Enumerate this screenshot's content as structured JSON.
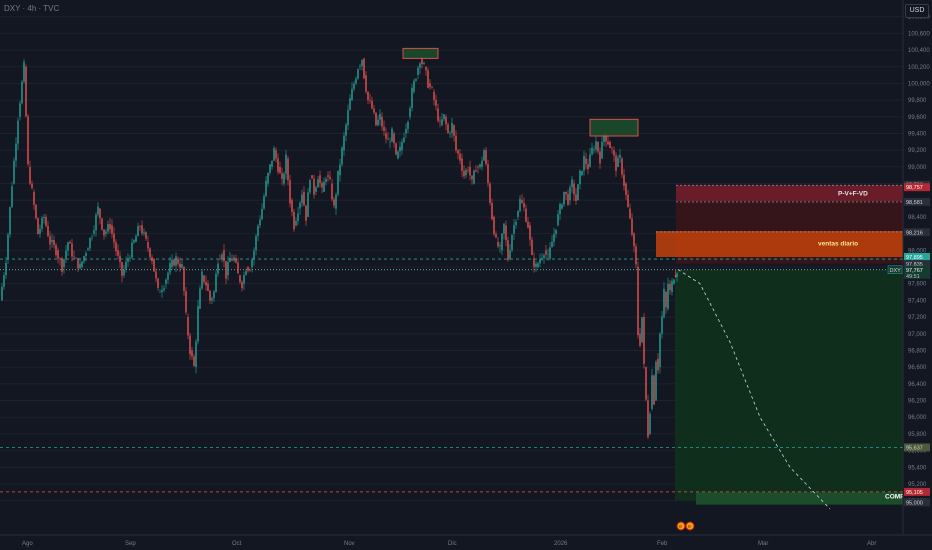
{
  "header": {
    "title": "DXY · 4h · TVC",
    "currency_button": "USD"
  },
  "colors": {
    "background": "#131722",
    "up": "#26a69a",
    "down": "#ef5350",
    "grid": "#1e222d",
    "buy_zone": "#1b4d2a",
    "sell_zone": "#8a1f1f",
    "daily_zone": "#c2410c",
    "pvfvd_zone": "#7a1d2a"
  },
  "zones": {
    "ventas_diario": "ventas diario",
    "pvfvd": "P-V+F-VD",
    "compra": "COMP"
  },
  "badges": {
    "left": "e",
    "right": "e"
  },
  "chart_data": {
    "type": "candlestick",
    "symbol": "DXY",
    "timeframe": "4h",
    "source": "TVC",
    "ylim": [
      94.6,
      101.0
    ],
    "x_labels": [
      "Ago",
      "Sep",
      "Oct",
      "Nov",
      "Dic",
      "2026",
      "Feb",
      "Mar",
      "Abr"
    ],
    "y_ticks": [
      95.0,
      95.2,
      95.4,
      95.6,
      95.8,
      96.0,
      96.2,
      96.4,
      96.6,
      96.8,
      97.0,
      97.2,
      97.4,
      97.6,
      97.8,
      98.0,
      98.2,
      98.4,
      98.6,
      98.8,
      99.0,
      99.2,
      99.4,
      99.6,
      99.8,
      100.0,
      100.2,
      100.4,
      100.6,
      100.8
    ],
    "y_tick_labels": [
      "95,000",
      "95,200",
      "95,400",
      "95,600",
      "95,800",
      "96,000",
      "96,200",
      "96,400",
      "96,600",
      "96,800",
      "97,000",
      "97,200",
      "97,400",
      "97,600",
      "97,800",
      "98,000",
      "98,200",
      "98,400",
      "98,600",
      "98,800",
      "99,000",
      "99,200",
      "99,400",
      "99,600",
      "99,800",
      "100,000",
      "100,200",
      "100,400",
      "100,600",
      "100,800"
    ],
    "price_path": [
      [
        0,
        97.4
      ],
      [
        6,
        97.9
      ],
      [
        12,
        98.8
      ],
      [
        18,
        99.6
      ],
      [
        24,
        100.2
      ],
      [
        28,
        99.0
      ],
      [
        32,
        98.7
      ],
      [
        38,
        98.2
      ],
      [
        44,
        98.4
      ],
      [
        50,
        98.1
      ],
      [
        56,
        98.0
      ],
      [
        62,
        97.8
      ],
      [
        68,
        98.1
      ],
      [
        74,
        97.9
      ],
      [
        80,
        97.8
      ],
      [
        86,
        98.0
      ],
      [
        92,
        98.2
      ],
      [
        98,
        98.5
      ],
      [
        104,
        98.2
      ],
      [
        110,
        98.3
      ],
      [
        116,
        98.0
      ],
      [
        122,
        97.7
      ],
      [
        128,
        97.9
      ],
      [
        134,
        98.1
      ],
      [
        140,
        98.3
      ],
      [
        146,
        98.1
      ],
      [
        152,
        97.9
      ],
      [
        158,
        97.5
      ],
      [
        164,
        97.6
      ],
      [
        170,
        97.8
      ],
      [
        176,
        97.9
      ],
      [
        182,
        97.8
      ],
      [
        186,
        97.2
      ],
      [
        190,
        96.8
      ],
      [
        194,
        96.6
      ],
      [
        198,
        97.3
      ],
      [
        202,
        97.7
      ],
      [
        206,
        97.6
      ],
      [
        210,
        97.4
      ],
      [
        214,
        97.5
      ],
      [
        218,
        97.9
      ],
      [
        222,
        98.0
      ],
      [
        226,
        97.7
      ],
      [
        230,
        97.9
      ],
      [
        234,
        97.9
      ],
      [
        238,
        97.7
      ],
      [
        242,
        97.6
      ],
      [
        246,
        97.8
      ],
      [
        250,
        97.8
      ],
      [
        254,
        98.0
      ],
      [
        258,
        98.3
      ],
      [
        262,
        98.5
      ],
      [
        266,
        98.8
      ],
      [
        270,
        99.0
      ],
      [
        274,
        99.2
      ],
      [
        278,
        99.0
      ],
      [
        282,
        98.8
      ],
      [
        286,
        99.1
      ],
      [
        290,
        98.6
      ],
      [
        294,
        98.3
      ],
      [
        298,
        98.5
      ],
      [
        302,
        98.7
      ],
      [
        306,
        98.4
      ],
      [
        310,
        98.9
      ],
      [
        314,
        98.7
      ],
      [
        318,
        98.9
      ],
      [
        322,
        98.7
      ],
      [
        326,
        98.9
      ],
      [
        330,
        98.8
      ],
      [
        334,
        98.5
      ],
      [
        338,
        98.9
      ],
      [
        342,
        99.2
      ],
      [
        346,
        99.5
      ],
      [
        350,
        99.8
      ],
      [
        354,
        100.0
      ],
      [
        358,
        100.2
      ],
      [
        362,
        100.3
      ],
      [
        364,
        100.1
      ],
      [
        368,
        99.8
      ],
      [
        372,
        99.7
      ],
      [
        376,
        99.5
      ],
      [
        380,
        99.6
      ],
      [
        384,
        99.4
      ],
      [
        388,
        99.3
      ],
      [
        392,
        99.4
      ],
      [
        396,
        99.1
      ],
      [
        400,
        99.2
      ],
      [
        404,
        99.4
      ],
      [
        408,
        99.6
      ],
      [
        412,
        99.9
      ],
      [
        416,
        100.1
      ],
      [
        420,
        100.3
      ],
      [
        424,
        100.2
      ],
      [
        428,
        100.0
      ],
      [
        432,
        99.9
      ],
      [
        436,
        99.7
      ],
      [
        440,
        99.5
      ],
      [
        444,
        99.6
      ],
      [
        448,
        99.4
      ],
      [
        452,
        99.5
      ],
      [
        456,
        99.2
      ],
      [
        460,
        99.1
      ],
      [
        464,
        98.9
      ],
      [
        468,
        99.0
      ],
      [
        472,
        98.8
      ],
      [
        476,
        99.0
      ],
      [
        480,
        99.0
      ],
      [
        484,
        99.2
      ],
      [
        488,
        98.8
      ],
      [
        492,
        98.4
      ],
      [
        496,
        98.1
      ],
      [
        500,
        98.0
      ],
      [
        504,
        98.3
      ],
      [
        508,
        97.9
      ],
      [
        512,
        98.2
      ],
      [
        516,
        98.4
      ],
      [
        520,
        98.6
      ],
      [
        524,
        98.5
      ],
      [
        528,
        98.3
      ],
      [
        532,
        97.9
      ],
      [
        536,
        97.8
      ],
      [
        540,
        97.9
      ],
      [
        544,
        98.0
      ],
      [
        548,
        97.9
      ],
      [
        552,
        98.1
      ],
      [
        556,
        98.3
      ],
      [
        560,
        98.5
      ],
      [
        564,
        98.7
      ],
      [
        568,
        98.6
      ],
      [
        572,
        98.8
      ],
      [
        576,
        98.6
      ],
      [
        580,
        98.9
      ],
      [
        584,
        99.1
      ],
      [
        588,
        99.0
      ],
      [
        592,
        99.2
      ],
      [
        596,
        99.3
      ],
      [
        600,
        99.1
      ],
      [
        604,
        99.4
      ],
      [
        608,
        99.3
      ],
      [
        612,
        99.2
      ],
      [
        616,
        99.0
      ],
      [
        620,
        99.1
      ],
      [
        624,
        98.8
      ],
      [
        628,
        98.5
      ],
      [
        632,
        98.2
      ],
      [
        636,
        97.8
      ],
      [
        638,
        97.0
      ],
      [
        640,
        96.9
      ],
      [
        642,
        97.2
      ],
      [
        644,
        96.6
      ],
      [
        646,
        96.2
      ],
      [
        648,
        95.8
      ],
      [
        650,
        96.1
      ],
      [
        652,
        96.5
      ],
      [
        654,
        96.2
      ],
      [
        656,
        96.7
      ],
      [
        658,
        96.6
      ],
      [
        660,
        97.0
      ],
      [
        662,
        97.2
      ],
      [
        664,
        97.5
      ],
      [
        666,
        97.3
      ],
      [
        668,
        97.6
      ],
      [
        670,
        97.5
      ],
      [
        672,
        97.6
      ],
      [
        674,
        97.7
      ],
      [
        677,
        97.77
      ]
    ],
    "last_price": 97.767,
    "countdown": "49:51",
    "price_labels": [
      "98,786",
      "98,757",
      "98,581",
      "98,216",
      "97,895",
      "97,835",
      "97,767",
      "95,637",
      "95,105",
      "95,000"
    ],
    "zones": [
      {
        "name": "P-V+F-VD",
        "from": 98.59,
        "to": 98.78
      },
      {
        "name": "sell",
        "from": 97.84,
        "to": 98.59
      },
      {
        "name": "ventas diario",
        "from": 97.92,
        "to": 98.23
      },
      {
        "name": "buy",
        "from": 95.0,
        "to": 97.77
      },
      {
        "name": "COMP",
        "from": 95.0,
        "to": 95.1
      }
    ],
    "boxes": [
      {
        "from": 100.3,
        "to": 100.42
      },
      {
        "from": 99.37,
        "to": 99.57
      }
    ],
    "horizontal_lines": [
      97.895,
      97.767,
      95.637,
      95.105
    ],
    "last_tag": "DXY",
    "projection": [
      [
        678,
        97.77
      ],
      [
        700,
        97.6
      ],
      [
        730,
        96.9
      ],
      [
        760,
        96.0
      ],
      [
        790,
        95.4
      ],
      [
        830,
        94.9
      ]
    ]
  }
}
